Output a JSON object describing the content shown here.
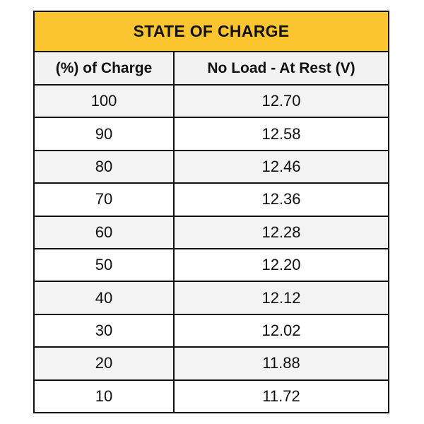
{
  "colors": {
    "title_background": "#fbc530",
    "header_background": "#f2f2f2",
    "alt_row": "#f3f3f3",
    "border": "#111111"
  },
  "chart_data": {
    "type": "table",
    "title": "STATE OF CHARGE",
    "columns": [
      "(%) of Charge",
      "No Load - At Rest (V)"
    ],
    "rows": [
      [
        "100",
        "12.70"
      ],
      [
        "90",
        "12.58"
      ],
      [
        "80",
        "12.46"
      ],
      [
        "70",
        "12.36"
      ],
      [
        "60",
        "12.28"
      ],
      [
        "50",
        "12.20"
      ],
      [
        "40",
        "12.12"
      ],
      [
        "30",
        "12.02"
      ],
      [
        "20",
        "11.88"
      ],
      [
        "10",
        "11.72"
      ]
    ]
  }
}
